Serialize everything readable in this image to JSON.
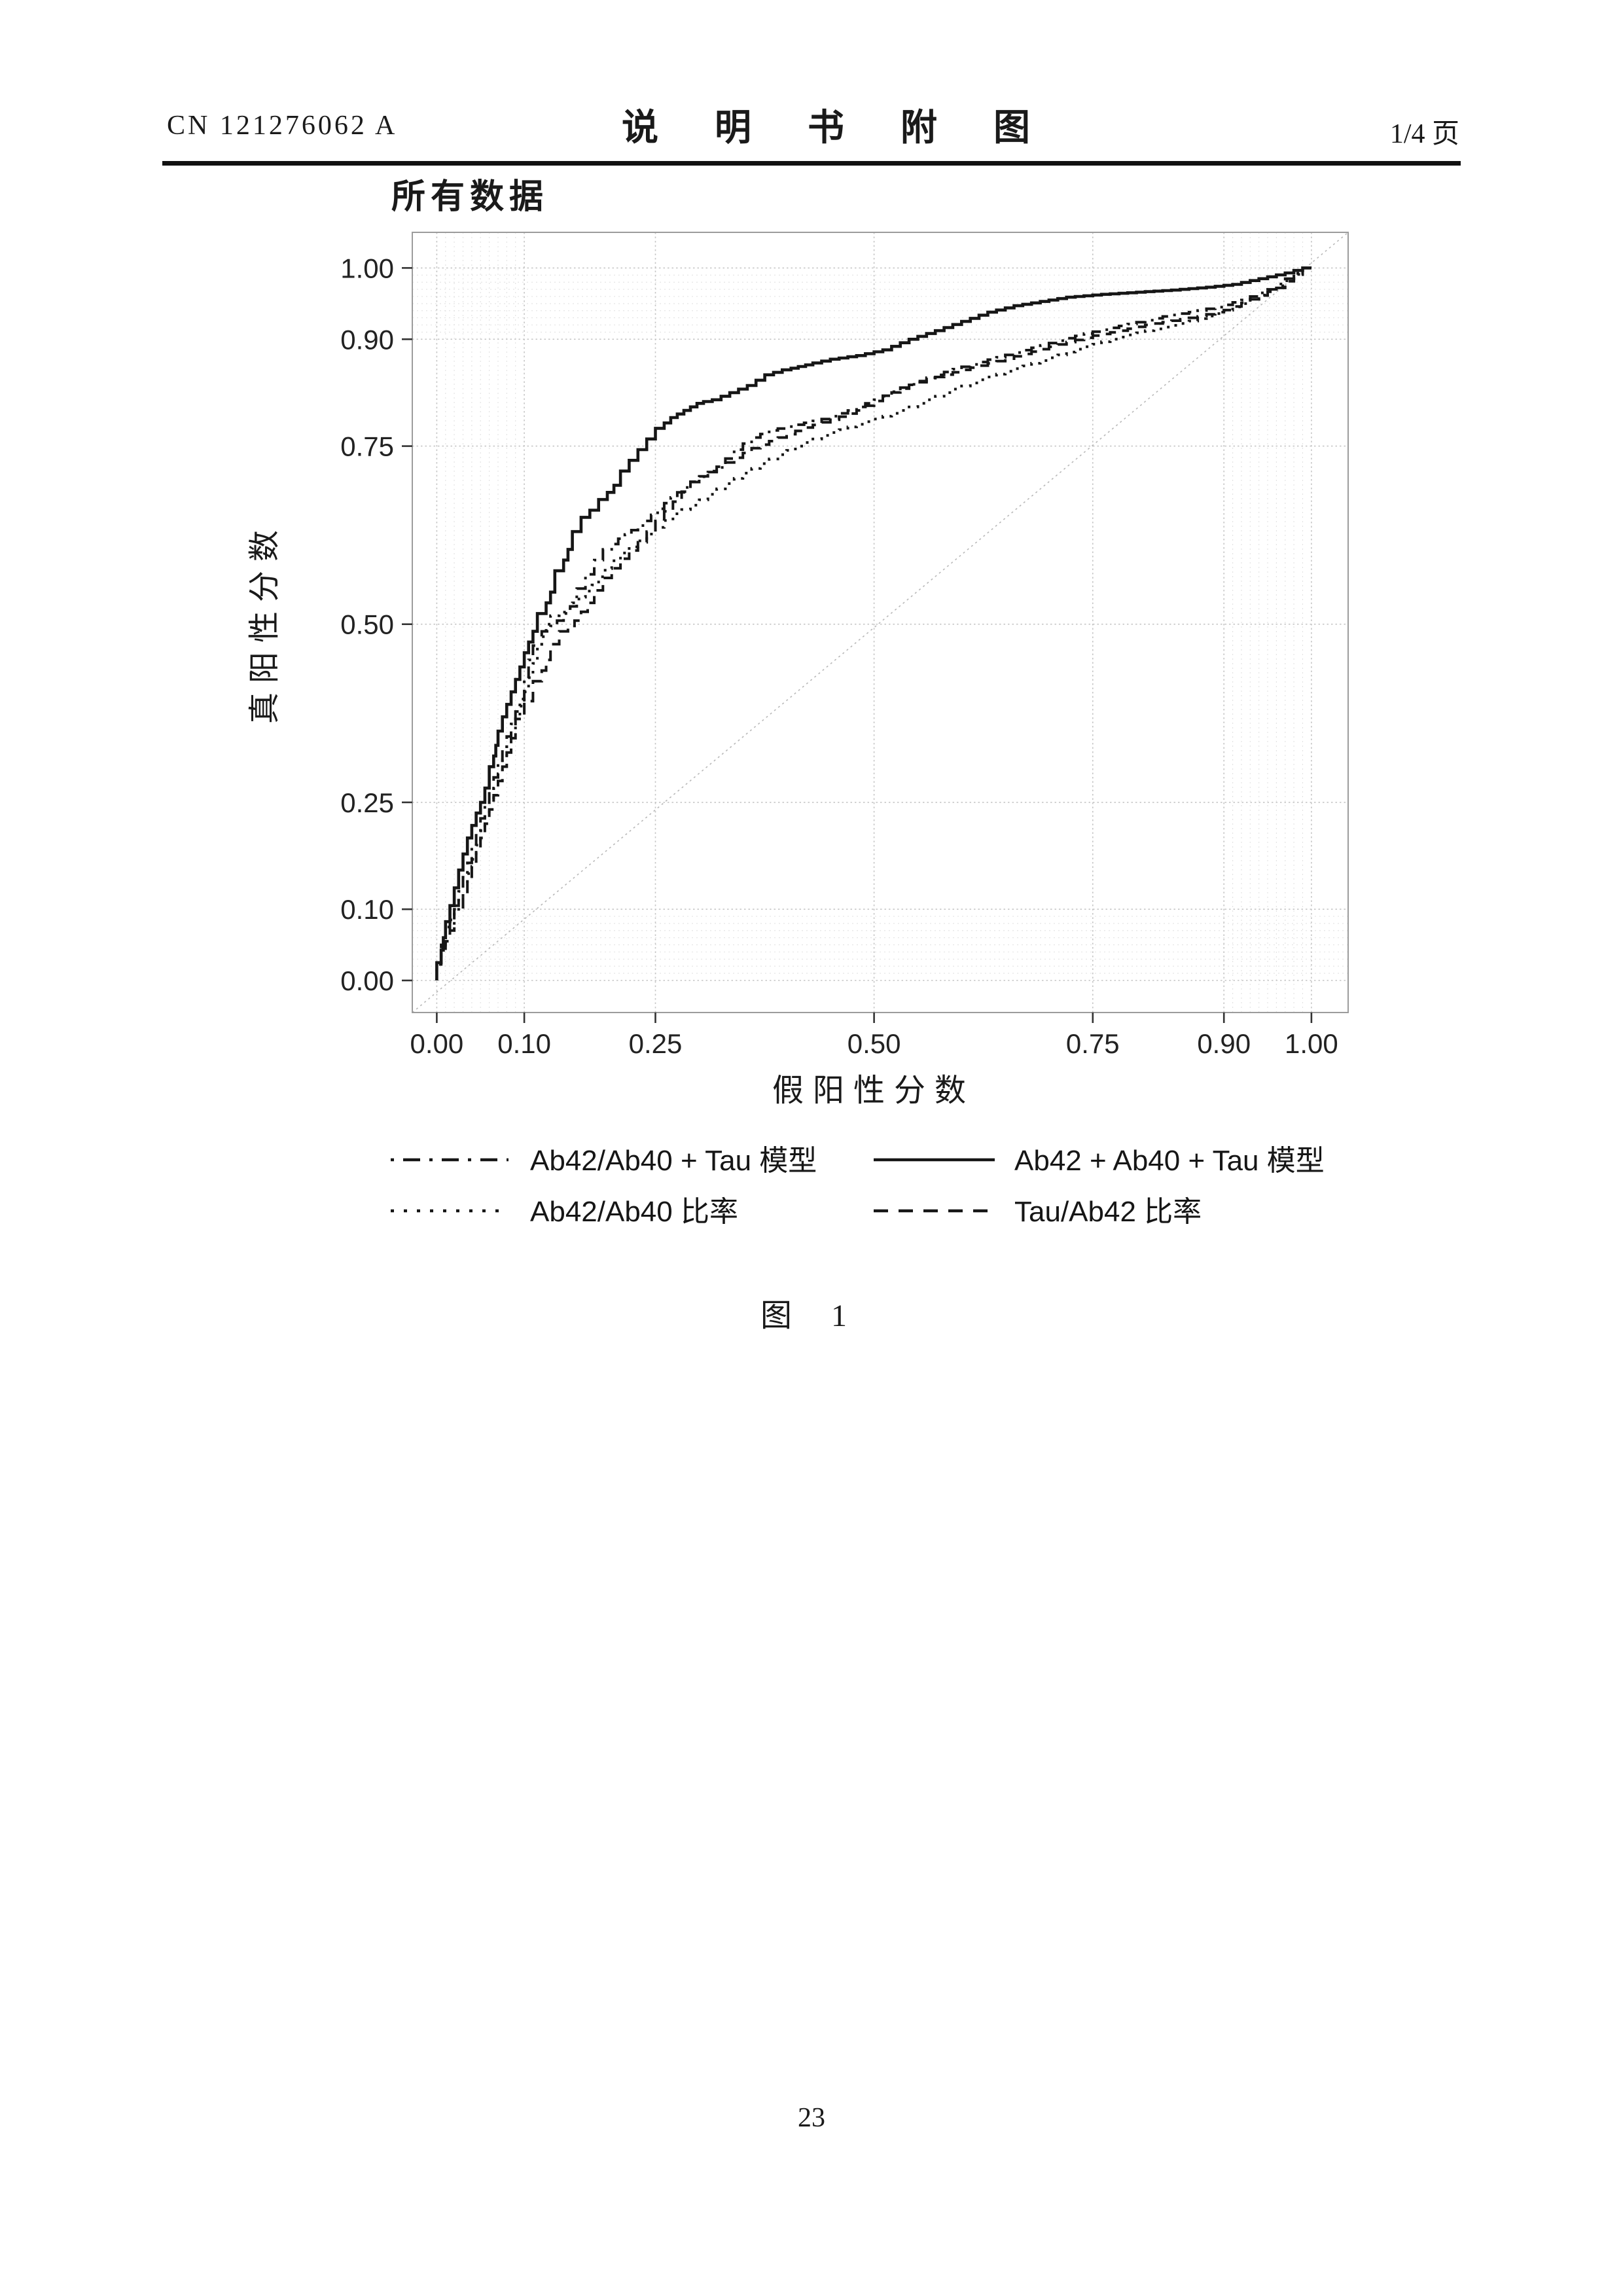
{
  "page": {
    "header": {
      "left": "CN 121276062 A",
      "center": "说 明 书 附 图",
      "right": "1/4 页"
    },
    "figure_caption": "图 1",
    "page_number": "23"
  },
  "chart_data": {
    "type": "line",
    "variant": "roc-staircase",
    "title": "所有数据",
    "xlabel": "假阳性分数",
    "ylabel": "真阳性分数",
    "xlim": [
      0,
      1
    ],
    "ylim": [
      0,
      1
    ],
    "grid": true,
    "diagonal_reference": true,
    "legend_position": "bottom",
    "ink_color": "#161616",
    "grid_color": "#c6c6c6",
    "minor_grid_color": "#e2e2e2",
    "diagonal_color": "#b8b8b8",
    "border_color": "#9c9c9c",
    "tick_color": "#333333",
    "x_ticks": {
      "values": [
        0,
        0.1,
        0.25,
        0.5,
        0.75,
        0.9,
        1.0
      ],
      "labels": [
        "0.00",
        "0.10",
        "0.25",
        "0.50",
        "0.75",
        "0.90",
        "1.00"
      ]
    },
    "y_ticks": {
      "values": [
        0,
        0.1,
        0.25,
        0.5,
        0.75,
        0.9,
        1.0
      ],
      "labels": [
        "0.00",
        "0.10",
        "0.25",
        "0.50",
        "0.75",
        "0.90",
        "1.00"
      ]
    },
    "minor_ticks": [
      0.01,
      0.02,
      0.03,
      0.04,
      0.05,
      0.06,
      0.07,
      0.08,
      0.09,
      0.91,
      0.92,
      0.93,
      0.94,
      0.95,
      0.96,
      0.97,
      0.98,
      0.99
    ],
    "series": [
      {
        "name": "Ab42/Ab40 + Tau 模型",
        "style": "dashdot",
        "points": [
          [
            0,
            0
          ],
          [
            0.01,
            0.05
          ],
          [
            0.02,
            0.085
          ],
          [
            0.03,
            0.125
          ],
          [
            0.04,
            0.165
          ],
          [
            0.05,
            0.21
          ],
          [
            0.06,
            0.245
          ],
          [
            0.07,
            0.285
          ],
          [
            0.08,
            0.325
          ],
          [
            0.09,
            0.36
          ],
          [
            0.1,
            0.395
          ],
          [
            0.105,
            0.425
          ],
          [
            0.11,
            0.45
          ],
          [
            0.12,
            0.47
          ],
          [
            0.13,
            0.49
          ],
          [
            0.145,
            0.505
          ],
          [
            0.16,
            0.525
          ],
          [
            0.17,
            0.55
          ],
          [
            0.18,
            0.57
          ],
          [
            0.19,
            0.59
          ],
          [
            0.2,
            0.605
          ],
          [
            0.215,
            0.62
          ],
          [
            0.23,
            0.632
          ],
          [
            0.245,
            0.645
          ],
          [
            0.26,
            0.662
          ],
          [
            0.275,
            0.678
          ],
          [
            0.29,
            0.692
          ],
          [
            0.31,
            0.707
          ],
          [
            0.33,
            0.72
          ],
          [
            0.35,
            0.745
          ],
          [
            0.37,
            0.762
          ],
          [
            0.39,
            0.772
          ],
          [
            0.42,
            0.78
          ],
          [
            0.45,
            0.788
          ],
          [
            0.48,
            0.8
          ],
          [
            0.51,
            0.815
          ],
          [
            0.54,
            0.832
          ],
          [
            0.57,
            0.846
          ],
          [
            0.6,
            0.858
          ],
          [
            0.63,
            0.868
          ],
          [
            0.66,
            0.878
          ],
          [
            0.69,
            0.888
          ],
          [
            0.72,
            0.898
          ],
          [
            0.75,
            0.908
          ],
          [
            0.78,
            0.916
          ],
          [
            0.81,
            0.924
          ],
          [
            0.84,
            0.932
          ],
          [
            0.87,
            0.938
          ],
          [
            0.9,
            0.945
          ],
          [
            0.93,
            0.955
          ],
          [
            0.96,
            0.97
          ],
          [
            0.98,
            0.985
          ],
          [
            1,
            1
          ]
        ]
      },
      {
        "name": "Ab42 + Ab40 + Tau 模型",
        "style": "solid",
        "points": [
          [
            0,
            0
          ],
          [
            0.005,
            0.025
          ],
          [
            0.01,
            0.06
          ],
          [
            0.02,
            0.105
          ],
          [
            0.025,
            0.13
          ],
          [
            0.03,
            0.155
          ],
          [
            0.04,
            0.2
          ],
          [
            0.05,
            0.235
          ],
          [
            0.055,
            0.25
          ],
          [
            0.06,
            0.27
          ],
          [
            0.065,
            0.3
          ],
          [
            0.07,
            0.33
          ],
          [
            0.08,
            0.37
          ],
          [
            0.09,
            0.405
          ],
          [
            0.1,
            0.44
          ],
          [
            0.105,
            0.46
          ],
          [
            0.11,
            0.475
          ],
          [
            0.115,
            0.49
          ],
          [
            0.125,
            0.515
          ],
          [
            0.135,
            0.545
          ],
          [
            0.145,
            0.575
          ],
          [
            0.155,
            0.605
          ],
          [
            0.165,
            0.63
          ],
          [
            0.175,
            0.65
          ],
          [
            0.185,
            0.66
          ],
          [
            0.195,
            0.675
          ],
          [
            0.21,
            0.695
          ],
          [
            0.22,
            0.715
          ],
          [
            0.23,
            0.73
          ],
          [
            0.24,
            0.745
          ],
          [
            0.25,
            0.76
          ],
          [
            0.26,
            0.775
          ],
          [
            0.275,
            0.79
          ],
          [
            0.29,
            0.8
          ],
          [
            0.305,
            0.81
          ],
          [
            0.325,
            0.815
          ],
          [
            0.345,
            0.825
          ],
          [
            0.365,
            0.835
          ],
          [
            0.385,
            0.85
          ],
          [
            0.405,
            0.857
          ],
          [
            0.43,
            0.864
          ],
          [
            0.46,
            0.872
          ],
          [
            0.49,
            0.877
          ],
          [
            0.52,
            0.885
          ],
          [
            0.55,
            0.9
          ],
          [
            0.58,
            0.912
          ],
          [
            0.61,
            0.925
          ],
          [
            0.64,
            0.938
          ],
          [
            0.67,
            0.947
          ],
          [
            0.7,
            0.953
          ],
          [
            0.73,
            0.959
          ],
          [
            0.77,
            0.963
          ],
          [
            0.81,
            0.966
          ],
          [
            0.85,
            0.969
          ],
          [
            0.89,
            0.973
          ],
          [
            0.92,
            0.977
          ],
          [
            0.95,
            0.985
          ],
          [
            0.98,
            0.993
          ],
          [
            1,
            1
          ]
        ]
      },
      {
        "name": "Ab42/Ab40 比率",
        "style": "dotted",
        "points": [
          [
            0,
            0
          ],
          [
            0.01,
            0.045
          ],
          [
            0.02,
            0.075
          ],
          [
            0.03,
            0.115
          ],
          [
            0.04,
            0.15
          ],
          [
            0.05,
            0.19
          ],
          [
            0.06,
            0.23
          ],
          [
            0.07,
            0.27
          ],
          [
            0.08,
            0.31
          ],
          [
            0.09,
            0.35
          ],
          [
            0.1,
            0.385
          ],
          [
            0.11,
            0.425
          ],
          [
            0.12,
            0.465
          ],
          [
            0.13,
            0.5
          ],
          [
            0.14,
            0.512
          ],
          [
            0.155,
            0.522
          ],
          [
            0.17,
            0.538
          ],
          [
            0.185,
            0.555
          ],
          [
            0.2,
            0.578
          ],
          [
            0.22,
            0.6
          ],
          [
            0.24,
            0.617
          ],
          [
            0.26,
            0.636
          ],
          [
            0.28,
            0.655
          ],
          [
            0.3,
            0.667
          ],
          [
            0.33,
            0.69
          ],
          [
            0.36,
            0.712
          ],
          [
            0.39,
            0.732
          ],
          [
            0.42,
            0.75
          ],
          [
            0.45,
            0.765
          ],
          [
            0.48,
            0.777
          ],
          [
            0.51,
            0.788
          ],
          [
            0.54,
            0.8
          ],
          [
            0.57,
            0.815
          ],
          [
            0.6,
            0.83
          ],
          [
            0.63,
            0.843
          ],
          [
            0.66,
            0.855
          ],
          [
            0.7,
            0.87
          ],
          [
            0.74,
            0.886
          ],
          [
            0.78,
            0.9
          ],
          [
            0.82,
            0.912
          ],
          [
            0.86,
            0.922
          ],
          [
            0.9,
            0.936
          ],
          [
            0.93,
            0.95
          ],
          [
            0.96,
            0.968
          ],
          [
            0.98,
            0.982
          ],
          [
            1,
            1
          ]
        ]
      },
      {
        "name": "Tau/Ab42 比率",
        "style": "dashed",
        "points": [
          [
            0,
            0
          ],
          [
            0.01,
            0.04
          ],
          [
            0.02,
            0.07
          ],
          [
            0.03,
            0.1
          ],
          [
            0.04,
            0.14
          ],
          [
            0.05,
            0.18
          ],
          [
            0.06,
            0.22
          ],
          [
            0.07,
            0.26
          ],
          [
            0.08,
            0.3
          ],
          [
            0.09,
            0.34
          ],
          [
            0.1,
            0.367
          ],
          [
            0.11,
            0.392
          ],
          [
            0.12,
            0.42
          ],
          [
            0.13,
            0.45
          ],
          [
            0.14,
            0.472
          ],
          [
            0.15,
            0.49
          ],
          [
            0.165,
            0.505
          ],
          [
            0.18,
            0.53
          ],
          [
            0.2,
            0.565
          ],
          [
            0.22,
            0.592
          ],
          [
            0.24,
            0.615
          ],
          [
            0.26,
            0.645
          ],
          [
            0.28,
            0.672
          ],
          [
            0.3,
            0.7
          ],
          [
            0.32,
            0.715
          ],
          [
            0.34,
            0.727
          ],
          [
            0.37,
            0.747
          ],
          [
            0.4,
            0.762
          ],
          [
            0.43,
            0.776
          ],
          [
            0.46,
            0.787
          ],
          [
            0.49,
            0.8
          ],
          [
            0.52,
            0.82
          ],
          [
            0.55,
            0.836
          ],
          [
            0.58,
            0.847
          ],
          [
            0.61,
            0.857
          ],
          [
            0.64,
            0.866
          ],
          [
            0.67,
            0.876
          ],
          [
            0.7,
            0.886
          ],
          [
            0.73,
            0.896
          ],
          [
            0.76,
            0.905
          ],
          [
            0.79,
            0.912
          ],
          [
            0.82,
            0.92
          ],
          [
            0.85,
            0.926
          ],
          [
            0.88,
            0.932
          ],
          [
            0.91,
            0.941
          ],
          [
            0.94,
            0.956
          ],
          [
            0.97,
            0.972
          ],
          [
            1,
            1
          ]
        ]
      }
    ]
  },
  "legend": {
    "items": [
      {
        "label": "Ab42/Ab40 + Tau 模型",
        "style": "dashdot"
      },
      {
        "label": "Ab42 + Ab40 + Tau 模型",
        "style": "solid"
      },
      {
        "label": "Ab42/Ab40 比率",
        "style": "dotted"
      },
      {
        "label": "Tau/Ab42 比率",
        "style": "dashed"
      }
    ]
  }
}
